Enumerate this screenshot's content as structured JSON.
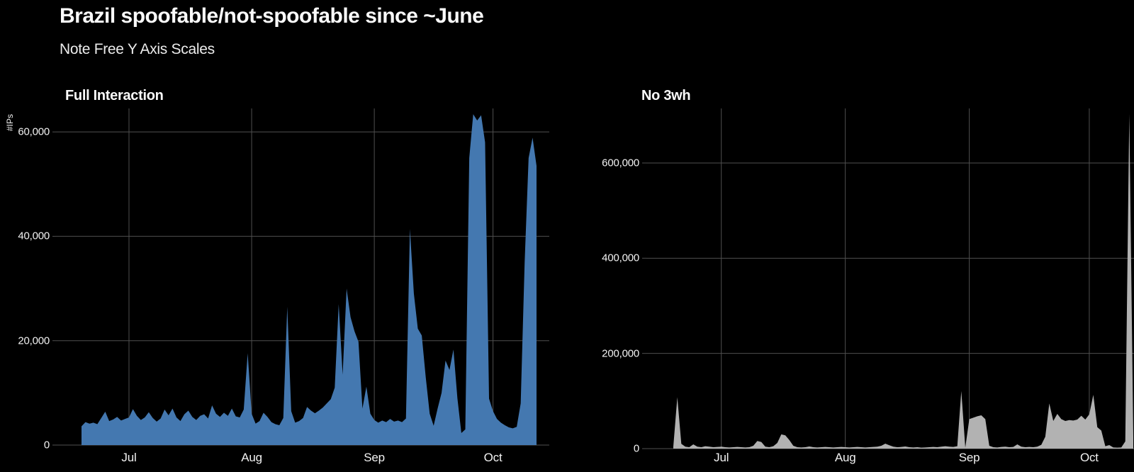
{
  "page": {
    "title": "Brazil spoofable/not-spoofable since ~June",
    "subtitle": "Note Free Y Axis Scales",
    "background": "#000000",
    "grid_color": "#4f4f4f",
    "tick_text_color": "#f2f2f2"
  },
  "chart_data": [
    {
      "type": "area",
      "title": "Full Interaction",
      "ylabel": "#IPs",
      "color": "#4478b0",
      "legend": "none",
      "grid": "on",
      "x_start": "Jun 19",
      "x_end": "Oct 12",
      "x_ticks": [
        "Jul",
        "Aug",
        "Sep",
        "Oct"
      ],
      "x_tick_days": [
        12,
        43,
        74,
        104
      ],
      "y_ticks": [
        "60,000",
        "40,000",
        "20,000",
        "0"
      ],
      "y_tick_values": [
        60000,
        40000,
        20000,
        0
      ],
      "ylim": [
        0,
        64500
      ],
      "values": [
        3600,
        4400,
        4100,
        4300,
        4000,
        5200,
        6400,
        4600,
        4900,
        5400,
        4700,
        5000,
        5300,
        6900,
        5600,
        4800,
        5300,
        6300,
        5200,
        4500,
        5100,
        6800,
        5700,
        7000,
        5300,
        4600,
        5900,
        6600,
        5400,
        4800,
        5600,
        5900,
        5100,
        7600,
        6000,
        5400,
        6200,
        5600,
        7000,
        5500,
        5300,
        6800,
        17600,
        6000,
        4100,
        4600,
        6200,
        5400,
        4400,
        4000,
        3800,
        5200,
        26500,
        6500,
        4300,
        4600,
        5200,
        7300,
        6600,
        6100,
        6600,
        7200,
        8000,
        8800,
        11000,
        27000,
        13500,
        30000,
        24500,
        21800,
        19800,
        7000,
        11200,
        6000,
        4800,
        4300,
        4700,
        4400,
        5000,
        4500,
        4700,
        4400,
        5100,
        41400,
        29000,
        22300,
        21000,
        13000,
        6000,
        3700,
        7000,
        10000,
        16200,
        14400,
        18300,
        9000,
        2300,
        3000,
        55000,
        63400,
        62200,
        63200,
        58000,
        8900,
        6500,
        5000,
        4300,
        3800,
        3400,
        3200,
        3500,
        8000,
        35000,
        55000,
        58900,
        53500
      ]
    },
    {
      "type": "area",
      "title": "No 3wh",
      "ylabel": "",
      "color": "#b2b2b2",
      "legend": "none",
      "grid": "on",
      "x_start": "Jun 19",
      "x_end": "Oct 12",
      "x_ticks": [
        "Jul",
        "Aug",
        "Sep",
        "Oct"
      ],
      "x_tick_days": [
        12,
        43,
        74,
        104
      ],
      "y_ticks": [
        "600,000",
        "400,000",
        "200,000",
        "0"
      ],
      "y_tick_values": [
        600000,
        400000,
        200000,
        0
      ],
      "ylim": [
        0,
        714600
      ],
      "values": [
        4000,
        108000,
        10000,
        4000,
        3000,
        9000,
        4000,
        3000,
        5000,
        4000,
        3000,
        3500,
        4000,
        3000,
        2500,
        3000,
        3500,
        3000,
        2500,
        3000,
        6000,
        16000,
        14000,
        4000,
        3000,
        5000,
        12000,
        30000,
        28000,
        18000,
        6000,
        3000,
        2500,
        3000,
        4500,
        3000,
        2500,
        3000,
        3500,
        3000,
        2500,
        3000,
        3500,
        3000,
        2500,
        3000,
        3500,
        3000,
        2500,
        3000,
        3500,
        4000,
        6000,
        10500,
        7000,
        4000,
        3000,
        3500,
        4500,
        3000,
        2500,
        3000,
        2000,
        2500,
        3000,
        3500,
        3000,
        4000,
        5000,
        4000,
        3500,
        5000,
        121000,
        2000,
        62000,
        65000,
        68000,
        70000,
        62000,
        6000,
        3000,
        2500,
        3500,
        4000,
        3000,
        3500,
        9000,
        4000,
        3000,
        3500,
        3000,
        4000,
        8000,
        25000,
        95000,
        58000,
        73000,
        62000,
        58000,
        60000,
        59000,
        61000,
        69000,
        61000,
        72000,
        113000,
        45000,
        38000,
        5000,
        7500,
        2500,
        2000,
        2500,
        15000,
        703000,
        25000
      ]
    }
  ]
}
